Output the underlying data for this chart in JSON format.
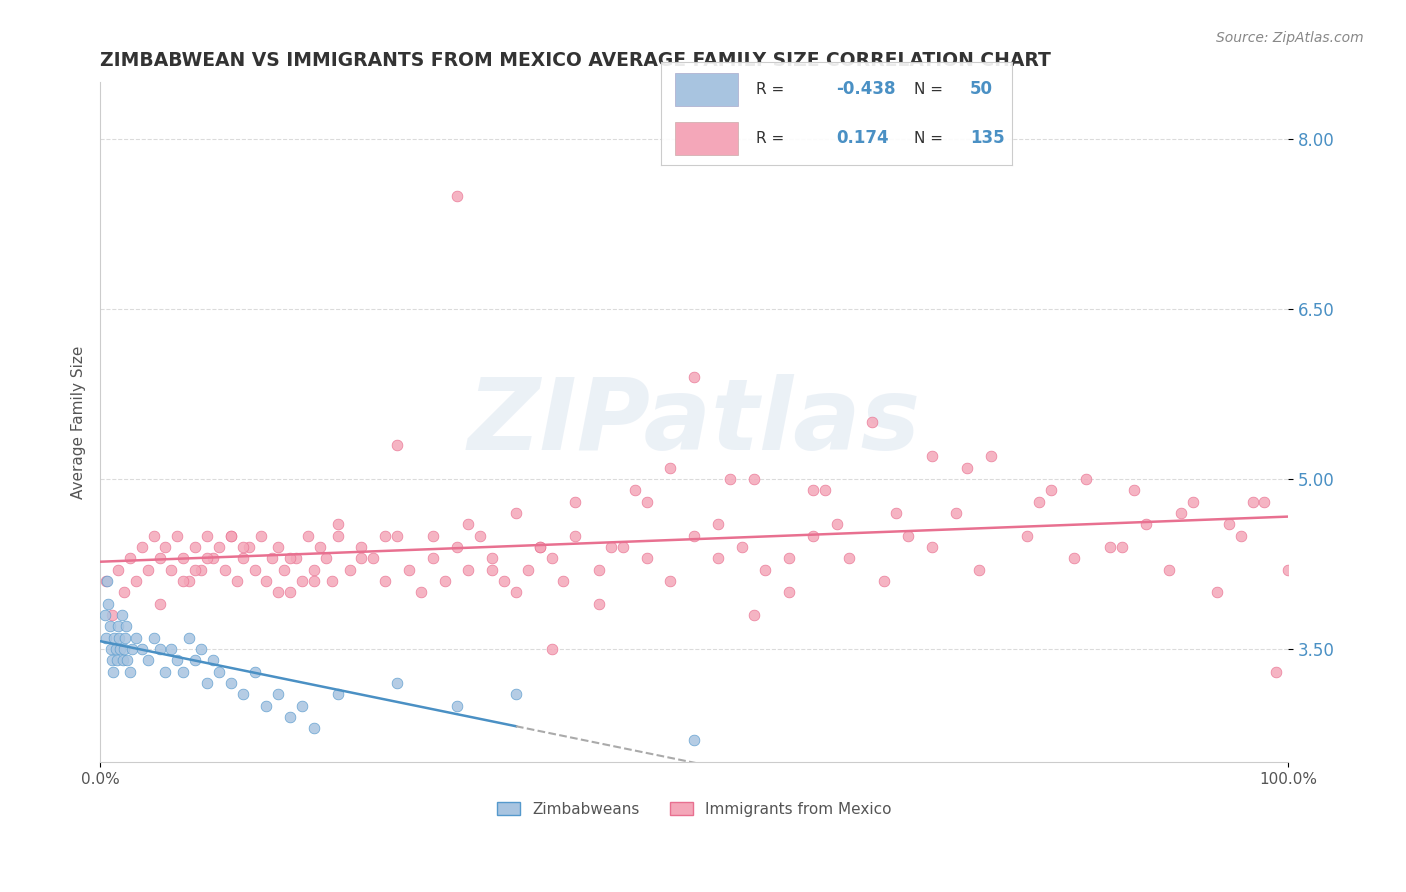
{
  "title": "ZIMBABWEAN VS IMMIGRANTS FROM MEXICO AVERAGE FAMILY SIZE CORRELATION CHART",
  "source": "Source: ZipAtlas.com",
  "xlabel": "",
  "ylabel": "Average Family Size",
  "xlim": [
    0.0,
    100.0
  ],
  "ylim": [
    2.5,
    8.5
  ],
  "yticks": [
    3.5,
    5.0,
    6.5,
    8.0
  ],
  "ytick_labels": [
    "3.50",
    "5.00",
    "6.50",
    "8.00"
  ],
  "xticks": [
    0.0,
    100.0
  ],
  "xtick_labels": [
    "0.0%",
    "100.0%"
  ],
  "legend_R1": "-0.438",
  "legend_N1": "50",
  "legend_R2": "0.174",
  "legend_N2": "135",
  "color_blue": "#a8c4e0",
  "color_pink": "#f4a7b9",
  "color_line_blue": "#4a90c4",
  "color_line_pink": "#e87090",
  "watermark": "ZIPatlas",
  "background_color": "#ffffff",
  "title_color": "#333333",
  "source_color": "#888888",
  "axis_label_color": "#555555",
  "tick_color_right": "#4a90c4",
  "grid_color": "#cccccc",
  "zimbabwe_x": [
    0.4,
    0.5,
    0.6,
    0.7,
    0.8,
    0.9,
    1.0,
    1.1,
    1.2,
    1.3,
    1.4,
    1.5,
    1.6,
    1.7,
    1.8,
    1.9,
    2.0,
    2.1,
    2.2,
    2.3,
    2.5,
    2.7,
    3.0,
    3.5,
    4.0,
    4.5,
    5.0,
    5.5,
    6.0,
    6.5,
    7.0,
    7.5,
    8.0,
    8.5,
    9.0,
    9.5,
    10.0,
    11.0,
    12.0,
    13.0,
    14.0,
    15.0,
    16.0,
    17.0,
    18.0,
    20.0,
    25.0,
    30.0,
    35.0,
    50.0
  ],
  "zimbabwe_y": [
    3.8,
    3.6,
    4.1,
    3.9,
    3.7,
    3.5,
    3.4,
    3.3,
    3.6,
    3.5,
    3.4,
    3.7,
    3.6,
    3.5,
    3.8,
    3.4,
    3.5,
    3.6,
    3.7,
    3.4,
    3.3,
    3.5,
    3.6,
    3.5,
    3.4,
    3.6,
    3.5,
    3.3,
    3.5,
    3.4,
    3.3,
    3.6,
    3.4,
    3.5,
    3.2,
    3.4,
    3.3,
    3.2,
    3.1,
    3.3,
    3.0,
    3.1,
    2.9,
    3.0,
    2.8,
    3.1,
    3.2,
    3.0,
    3.1,
    2.7
  ],
  "mexico_x": [
    0.5,
    1.0,
    1.5,
    2.0,
    2.5,
    3.0,
    3.5,
    4.0,
    4.5,
    5.0,
    5.5,
    6.0,
    6.5,
    7.0,
    7.5,
    8.0,
    8.5,
    9.0,
    9.5,
    10.0,
    10.5,
    11.0,
    11.5,
    12.0,
    12.5,
    13.0,
    13.5,
    14.0,
    14.5,
    15.0,
    15.5,
    16.0,
    16.5,
    17.0,
    17.5,
    18.0,
    18.5,
    19.0,
    19.5,
    20.0,
    21.0,
    22.0,
    23.0,
    24.0,
    25.0,
    26.0,
    27.0,
    28.0,
    29.0,
    30.0,
    31.0,
    32.0,
    33.0,
    34.0,
    35.0,
    36.0,
    37.0,
    38.0,
    39.0,
    40.0,
    42.0,
    44.0,
    46.0,
    48.0,
    50.0,
    52.0,
    54.0,
    56.0,
    58.0,
    60.0,
    63.0,
    66.0,
    70.0,
    74.0,
    78.0,
    82.0,
    86.0,
    90.0,
    94.0,
    97.0,
    99.0,
    100.0,
    30.0,
    50.0,
    65.0,
    75.0,
    40.0,
    55.0,
    45.0,
    20.0,
    25.0,
    35.0,
    48.0,
    60.0,
    70.0,
    80.0,
    55.0,
    62.0,
    38.0,
    42.0,
    15.0,
    18.0,
    22.0,
    28.0,
    33.0,
    43.0,
    52.0,
    58.0,
    68.0,
    72.0,
    85.0,
    88.0,
    92.0,
    96.0,
    8.0,
    12.0,
    16.0,
    24.0,
    31.0,
    37.0,
    46.0,
    53.0,
    61.0,
    67.0,
    73.0,
    79.0,
    83.0,
    87.0,
    91.0,
    95.0,
    98.0,
    5.0,
    7.0,
    9.0,
    11.0
  ],
  "mexico_y": [
    4.1,
    3.8,
    4.2,
    4.0,
    4.3,
    4.1,
    4.4,
    4.2,
    4.5,
    4.3,
    4.4,
    4.2,
    4.5,
    4.3,
    4.1,
    4.4,
    4.2,
    4.5,
    4.3,
    4.4,
    4.2,
    4.5,
    4.1,
    4.3,
    4.4,
    4.2,
    4.5,
    4.1,
    4.3,
    4.4,
    4.2,
    4.0,
    4.3,
    4.1,
    4.5,
    4.2,
    4.4,
    4.3,
    4.1,
    4.5,
    4.2,
    4.4,
    4.3,
    4.1,
    4.5,
    4.2,
    4.0,
    4.3,
    4.1,
    4.4,
    4.2,
    4.5,
    4.3,
    4.1,
    4.0,
    4.2,
    4.4,
    4.3,
    4.1,
    4.5,
    4.2,
    4.4,
    4.3,
    4.1,
    4.5,
    4.3,
    4.4,
    4.2,
    4.0,
    4.5,
    4.3,
    4.1,
    4.4,
    4.2,
    4.5,
    4.3,
    4.4,
    4.2,
    4.0,
    4.8,
    3.3,
    4.2,
    7.5,
    5.9,
    5.5,
    5.2,
    4.8,
    5.0,
    4.9,
    4.6,
    5.3,
    4.7,
    5.1,
    4.9,
    5.2,
    4.9,
    3.8,
    4.6,
    3.5,
    3.9,
    4.0,
    4.1,
    4.3,
    4.5,
    4.2,
    4.4,
    4.6,
    4.3,
    4.5,
    4.7,
    4.4,
    4.6,
    4.8,
    4.5,
    4.2,
    4.4,
    4.3,
    4.5,
    4.6,
    4.4,
    4.8,
    5.0,
    4.9,
    4.7,
    5.1,
    4.8,
    5.0,
    4.9,
    4.7,
    4.6,
    4.8,
    3.9,
    4.1,
    4.3,
    4.5
  ]
}
